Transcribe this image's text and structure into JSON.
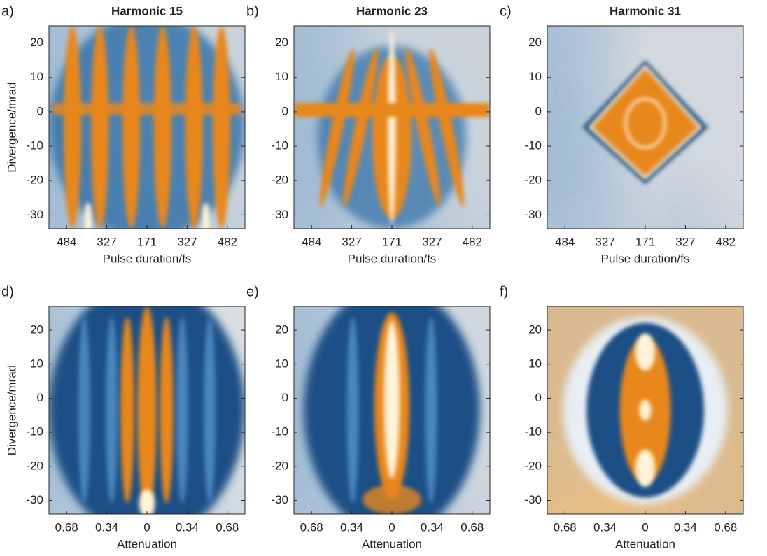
{
  "chart_data": [
    {
      "type": "heatmap",
      "panel": "a)",
      "title": "Harmonic 15",
      "categories": [
        "484",
        "327",
        "171",
        "327",
        "482"
      ],
      "xlabel": "Pulse duration/fs",
      "ylabel": "Divergence/mrad",
      "ylim": [
        -34,
        25
      ],
      "yticks": [
        -30,
        -20,
        -10,
        0,
        10,
        20
      ]
    },
    {
      "type": "heatmap",
      "panel": "b)",
      "title": "Harmonic 23",
      "categories": [
        "484",
        "327",
        "171",
        "327",
        "482"
      ],
      "xlabel": "Pulse duration/fs",
      "ylim": [
        -34,
        25
      ],
      "yticks": [
        -30,
        -20,
        -10,
        0,
        10,
        20
      ]
    },
    {
      "type": "heatmap",
      "panel": "c)",
      "title": "Harmonic 31",
      "categories": [
        "484",
        "327",
        "171",
        "327",
        "482"
      ],
      "xlabel": "Pulse duration/fs",
      "ylim": [
        -34,
        25
      ],
      "yticks": [
        -30,
        -20,
        -10,
        0,
        10,
        20
      ]
    },
    {
      "type": "heatmap",
      "panel": "d)",
      "categories": [
        "0.68",
        "0.34",
        "0",
        "0.34",
        "0.68"
      ],
      "xlabel": "Attenuation",
      "ylabel": "Divergence/mrad",
      "ylim": [
        -34,
        27
      ],
      "yticks": [
        -30,
        -20,
        -10,
        0,
        10,
        20
      ]
    },
    {
      "type": "heatmap",
      "panel": "e)",
      "categories": [
        "0.68",
        "0.34",
        "0",
        "0.34",
        "0.68"
      ],
      "xlabel": "Attenuation",
      "ylim": [
        -34,
        27
      ],
      "yticks": [
        -30,
        -20,
        -10,
        0,
        10,
        20
      ]
    },
    {
      "type": "heatmap",
      "panel": "f)",
      "categories": [
        "0.68",
        "0.34",
        "0",
        "0.34",
        "0.68"
      ],
      "xlabel": "Attenuation",
      "ylim": [
        -34,
        27
      ],
      "yticks": [
        -30,
        -20,
        -10,
        0,
        10,
        20
      ]
    }
  ]
}
